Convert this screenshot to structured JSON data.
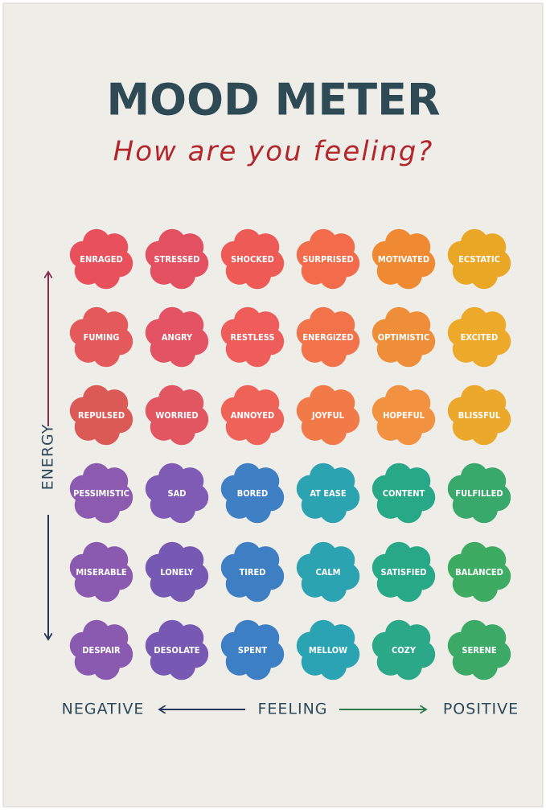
{
  "title": "MOOD METER",
  "subtitle": "How are you feeling?",
  "energy_label": "ENERGY",
  "feeling_axis": {
    "left": "NEGATIVE",
    "middle": "FEELING",
    "right": "POSITIVE"
  },
  "grid": [
    [
      {
        "label": "ENRAGED",
        "color": "#e8515b"
      },
      {
        "label": "STRESSED",
        "color": "#e3505f"
      },
      {
        "label": "SHOCKED",
        "color": "#ee5a55"
      },
      {
        "label": "SURPRISED",
        "color": "#f26c4b"
      },
      {
        "label": "MOTIVATED",
        "color": "#f08a32"
      },
      {
        "label": "ECSTATIC",
        "color": "#eaa725"
      }
    ],
    [
      {
        "label": "FUMING",
        "color": "#e45a5a"
      },
      {
        "label": "ANGRY",
        "color": "#e35363"
      },
      {
        "label": "RESTLESS",
        "color": "#ee5d5a"
      },
      {
        "label": "ENERGIZED",
        "color": "#f2724a"
      },
      {
        "label": "OPTIMISTIC",
        "color": "#ee8e38"
      },
      {
        "label": "EXCITED",
        "color": "#edaa2a"
      }
    ],
    [
      {
        "label": "REPULSED",
        "color": "#dc5a55"
      },
      {
        "label": "WORRIED",
        "color": "#e15661"
      },
      {
        "label": "ANNOYED",
        "color": "#ee6258"
      },
      {
        "label": "JOYFUL",
        "color": "#f27a48"
      },
      {
        "label": "HOPEFUL",
        "color": "#f2913f"
      },
      {
        "label": "BLISSFUL",
        "color": "#eca82a"
      }
    ],
    [
      {
        "label": "PESSIMISTIC",
        "color": "#8c5bb0"
      },
      {
        "label": "SAD",
        "color": "#7f5bb5"
      },
      {
        "label": "BORED",
        "color": "#3f7fc4"
      },
      {
        "label": "AT EASE",
        "color": "#2ba3b0"
      },
      {
        "label": "CONTENT",
        "color": "#27a886"
      },
      {
        "label": "FULFILLED",
        "color": "#39a96b"
      }
    ],
    [
      {
        "label": "MISERABLE",
        "color": "#8a5ab0"
      },
      {
        "label": "LONELY",
        "color": "#7659b3"
      },
      {
        "label": "TIRED",
        "color": "#3e7ec2"
      },
      {
        "label": "CALM",
        "color": "#2ba3b0"
      },
      {
        "label": "SATISFIED",
        "color": "#27a886"
      },
      {
        "label": "BALANCED",
        "color": "#3dab62"
      }
    ],
    [
      {
        "label": "DESPAIR",
        "color": "#8a5ab0"
      },
      {
        "label": "DESOLATE",
        "color": "#7759b3"
      },
      {
        "label": "SPENT",
        "color": "#3d7fc4"
      },
      {
        "label": "MELLOW",
        "color": "#2aa3b2"
      },
      {
        "label": "COZY",
        "color": "#2aa888"
      },
      {
        "label": "SERENE",
        "color": "#3aaa66"
      }
    ]
  ]
}
